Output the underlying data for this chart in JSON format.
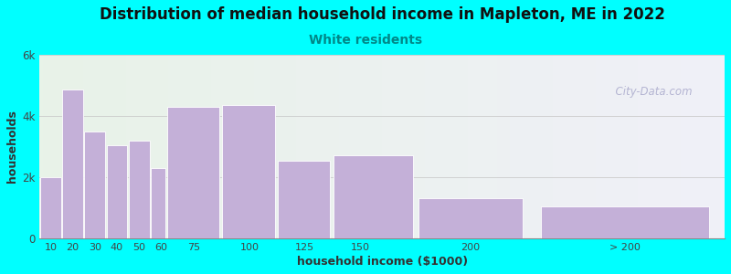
{
  "title": "Distribution of median household income in Mapleton, ME in 2022",
  "subtitle": "White residents",
  "xlabel": "household income ($1000)",
  "ylabel": "households",
  "background_color": "#00FFFF",
  "bar_color": "#c4b0d8",
  "bar_edge_color": "#ffffff",
  "values": [
    2000,
    4850,
    3500,
    3050,
    3200,
    2300,
    4300,
    4350,
    2550,
    2700,
    1300,
    1050
  ],
  "bar_lefts": [
    5,
    15,
    25,
    35,
    45,
    55,
    62,
    87,
    112,
    137,
    175,
    230
  ],
  "bar_widths": [
    10,
    10,
    10,
    10,
    10,
    7,
    25,
    25,
    25,
    38,
    50,
    80
  ],
  "ylim": [
    0,
    6000
  ],
  "ytick_labels": [
    "0",
    "2k",
    "4k",
    "6k"
  ],
  "ytick_values": [
    0,
    2000,
    4000,
    6000
  ],
  "xtick_positions": [
    10,
    20,
    30,
    40,
    50,
    60,
    75,
    100,
    125,
    150,
    200,
    270
  ],
  "xtick_labels": [
    "10",
    "20",
    "30",
    "40",
    "50",
    "60",
    "75",
    "100",
    "125",
    "150",
    "200",
    "> 200"
  ],
  "xlim": [
    5,
    315
  ],
  "title_fontsize": 12,
  "subtitle_fontsize": 10,
  "subtitle_color": "#008888",
  "axis_label_fontsize": 9,
  "watermark_text": "  City-Data.com",
  "watermark_color": "#aaaacc",
  "grid_color": "#cccccc",
  "plot_bg_left": "#e8f3e8",
  "plot_bg_right": "#f0f0f8"
}
